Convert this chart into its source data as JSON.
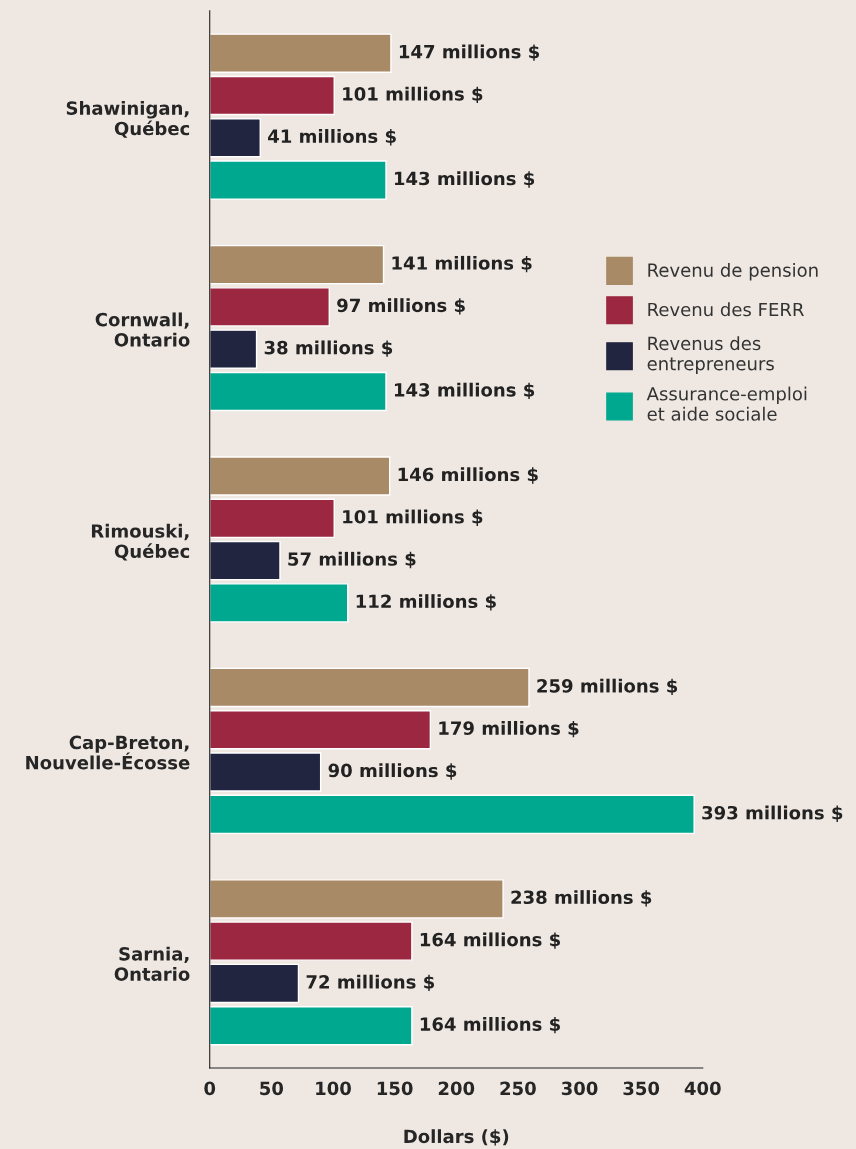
{
  "chart_data": {
    "type": "bar",
    "orientation": "horizontal",
    "xlabel": "Dollars ($)",
    "categories": [
      "Shawinigan,\nQuébec",
      "Cornwall,\nOntario",
      "Rimouski,\nQuébec",
      "Cap-Breton,\nNouvelle-Écosse",
      "Sarnia,\nOntario"
    ],
    "series": [
      {
        "name": "Revenu de pension",
        "color": "#a88a66",
        "values": [
          147,
          141,
          146,
          259,
          238
        ],
        "value_labels": [
          "147 millions $",
          "141 millions $",
          "146 millions $",
          "259 millions $",
          "238 millions $"
        ]
      },
      {
        "name": "Revenu des FERR",
        "color": "#9b2740",
        "values": [
          101,
          97,
          101,
          179,
          164
        ],
        "value_labels": [
          "101 millions $",
          "97 millions $",
          "101 millions $",
          "179 millions $",
          "164 millions $"
        ]
      },
      {
        "name": "Revenus des\nentrepreneurs",
        "color": "#222540",
        "values": [
          41,
          38,
          57,
          90,
          72
        ],
        "value_labels": [
          "41 millions $",
          "38 millions $",
          "57 millions $",
          "90 millions $",
          "72 millions $"
        ]
      },
      {
        "name": "Assurance-emploi\net aide sociale",
        "color": "#00a88f",
        "values": [
          143,
          143,
          112,
          393,
          164
        ],
        "value_labels": [
          "143 millions $",
          "143 millions $",
          "112 millions $",
          "393 millions $",
          "164 millions $"
        ]
      }
    ],
    "xlim": [
      0,
      400
    ],
    "xticks": [
      0,
      50,
      100,
      150,
      200,
      250,
      300,
      350,
      400
    ],
    "grid": false,
    "legend": "right"
  }
}
